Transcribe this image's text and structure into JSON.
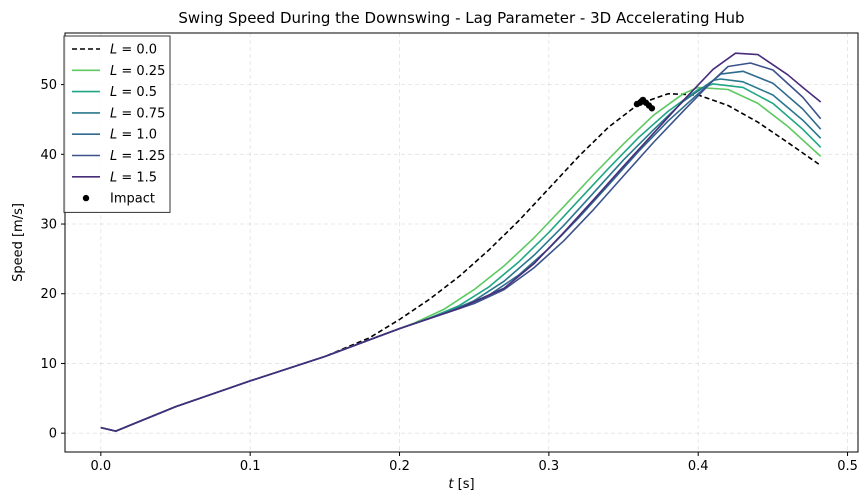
{
  "chart_data": {
    "type": "line",
    "title": "Swing Speed During the Downswing - Lag Parameter - 3D Accelerating Hub",
    "xlabel": "t [s]",
    "ylabel": "Speed [m/s]",
    "xlim": [
      -0.024,
      0.507
    ],
    "ylim": [
      -2.7,
      57.4
    ],
    "xticks": [
      0.0,
      0.1,
      0.2,
      0.3,
      0.4,
      0.5
    ],
    "xtick_labels": [
      "0.0",
      "0.1",
      "0.2",
      "0.3",
      "0.4",
      "0.5"
    ],
    "yticks": [
      0,
      10,
      20,
      30,
      40,
      50
    ],
    "ytick_labels": [
      "0",
      "10",
      "20",
      "30",
      "40",
      "50"
    ],
    "grid": true,
    "legend_position": "upper-left",
    "series": [
      {
        "name": "L = 0.0",
        "label_math": "L",
        "label_value": "= 0.0",
        "color": "#000000",
        "dashed": true,
        "x": [
          0.0,
          0.01,
          0.05,
          0.1,
          0.15,
          0.18,
          0.2,
          0.22,
          0.24,
          0.26,
          0.28,
          0.3,
          0.32,
          0.34,
          0.36,
          0.38,
          0.4,
          0.42,
          0.44,
          0.46,
          0.482
        ],
        "y": [
          0.8,
          0.3,
          3.8,
          7.5,
          11.0,
          13.7,
          16.3,
          19.2,
          22.5,
          26.3,
          30.5,
          35.1,
          39.7,
          43.9,
          47.2,
          48.7,
          48.5,
          47.0,
          44.6,
          41.7,
          38.4
        ]
      },
      {
        "name": "L = 0.25",
        "label_math": "L",
        "label_value": "= 0.25",
        "color": "#5ec962",
        "dashed": false,
        "x": [
          0.0,
          0.01,
          0.05,
          0.1,
          0.15,
          0.2,
          0.21,
          0.23,
          0.25,
          0.27,
          0.29,
          0.31,
          0.33,
          0.35,
          0.37,
          0.39,
          0.4,
          0.42,
          0.44,
          0.46,
          0.482
        ],
        "y": [
          0.8,
          0.3,
          3.8,
          7.5,
          11.0,
          15.0,
          15.8,
          17.8,
          20.6,
          24.0,
          28.0,
          32.5,
          37.1,
          41.5,
          45.6,
          48.7,
          49.6,
          49.3,
          47.3,
          44.0,
          39.7
        ]
      },
      {
        "name": "L = 0.5",
        "label_math": "L",
        "label_value": "= 0.5",
        "color": "#21a685",
        "dashed": false,
        "x": [
          0.0,
          0.01,
          0.05,
          0.1,
          0.15,
          0.2,
          0.22,
          0.24,
          0.26,
          0.28,
          0.3,
          0.32,
          0.34,
          0.36,
          0.38,
          0.4,
          0.41,
          0.43,
          0.45,
          0.47,
          0.482
        ],
        "y": [
          0.8,
          0.3,
          3.8,
          7.5,
          11.0,
          15.0,
          16.5,
          18.3,
          21.0,
          24.6,
          28.8,
          33.4,
          38.0,
          42.4,
          46.2,
          49.3,
          50.1,
          49.6,
          47.3,
          43.6,
          41.0
        ]
      },
      {
        "name": "L = 0.75",
        "label_math": "L",
        "label_value": "= 0.75",
        "color": "#2a788e",
        "dashed": false,
        "x": [
          0.0,
          0.01,
          0.05,
          0.1,
          0.15,
          0.2,
          0.23,
          0.25,
          0.27,
          0.29,
          0.31,
          0.33,
          0.35,
          0.37,
          0.39,
          0.41,
          0.415,
          0.43,
          0.45,
          0.47,
          0.482
        ],
        "y": [
          0.8,
          0.3,
          3.8,
          7.5,
          11.0,
          15.0,
          17.2,
          19.0,
          21.8,
          25.5,
          29.8,
          34.5,
          39.2,
          43.5,
          47.6,
          50.6,
          50.8,
          50.4,
          48.5,
          44.9,
          42.3
        ]
      },
      {
        "name": "L = 1.0",
        "label_math": "L",
        "label_value": "= 1.0",
        "color": "#306a8e",
        "dashed": false,
        "x": [
          0.0,
          0.01,
          0.05,
          0.1,
          0.15,
          0.2,
          0.24,
          0.26,
          0.28,
          0.3,
          0.32,
          0.34,
          0.36,
          0.38,
          0.4,
          0.415,
          0.43,
          0.45,
          0.47,
          0.482
        ],
        "y": [
          0.8,
          0.3,
          3.8,
          7.5,
          11.0,
          15.0,
          17.9,
          19.8,
          22.7,
          26.5,
          30.9,
          35.6,
          40.4,
          44.8,
          48.7,
          51.5,
          51.9,
          50.2,
          46.5,
          43.6
        ]
      },
      {
        "name": "L = 1.25",
        "label_math": "L",
        "label_value": "= 1.25",
        "color": "#3b528b",
        "dashed": false,
        "x": [
          0.0,
          0.01,
          0.05,
          0.1,
          0.15,
          0.2,
          0.25,
          0.27,
          0.29,
          0.31,
          0.33,
          0.35,
          0.37,
          0.39,
          0.41,
          0.42,
          0.435,
          0.45,
          0.47,
          0.482
        ],
        "y": [
          0.8,
          0.3,
          3.8,
          7.5,
          11.0,
          15.0,
          18.6,
          20.6,
          23.7,
          27.6,
          32.1,
          36.9,
          41.7,
          46.2,
          50.6,
          52.6,
          53.1,
          52.1,
          48.2,
          45.1
        ]
      },
      {
        "name": "L = 1.5",
        "label_math": "L",
        "label_value": "= 1.5",
        "color": "#472d7b",
        "dashed": false,
        "x": [
          0.0,
          0.01,
          0.05,
          0.1,
          0.15,
          0.2,
          0.24,
          0.27,
          0.29,
          0.31,
          0.33,
          0.35,
          0.37,
          0.39,
          0.41,
          0.425,
          0.44,
          0.46,
          0.47,
          0.482
        ],
        "y": [
          0.8,
          0.3,
          3.8,
          7.5,
          11.0,
          15.0,
          17.9,
          20.8,
          24.3,
          28.8,
          33.5,
          38.3,
          43.0,
          47.7,
          52.2,
          54.5,
          54.3,
          51.4,
          49.6,
          47.5
        ]
      }
    ],
    "impact": {
      "name": "Impact",
      "color": "#000000",
      "points": [
        [
          0.359,
          47.2
        ],
        [
          0.361,
          47.4
        ],
        [
          0.362,
          47.6
        ],
        [
          0.363,
          47.8
        ],
        [
          0.365,
          47.4
        ],
        [
          0.367,
          47.0
        ],
        [
          0.369,
          46.6
        ]
      ]
    }
  }
}
